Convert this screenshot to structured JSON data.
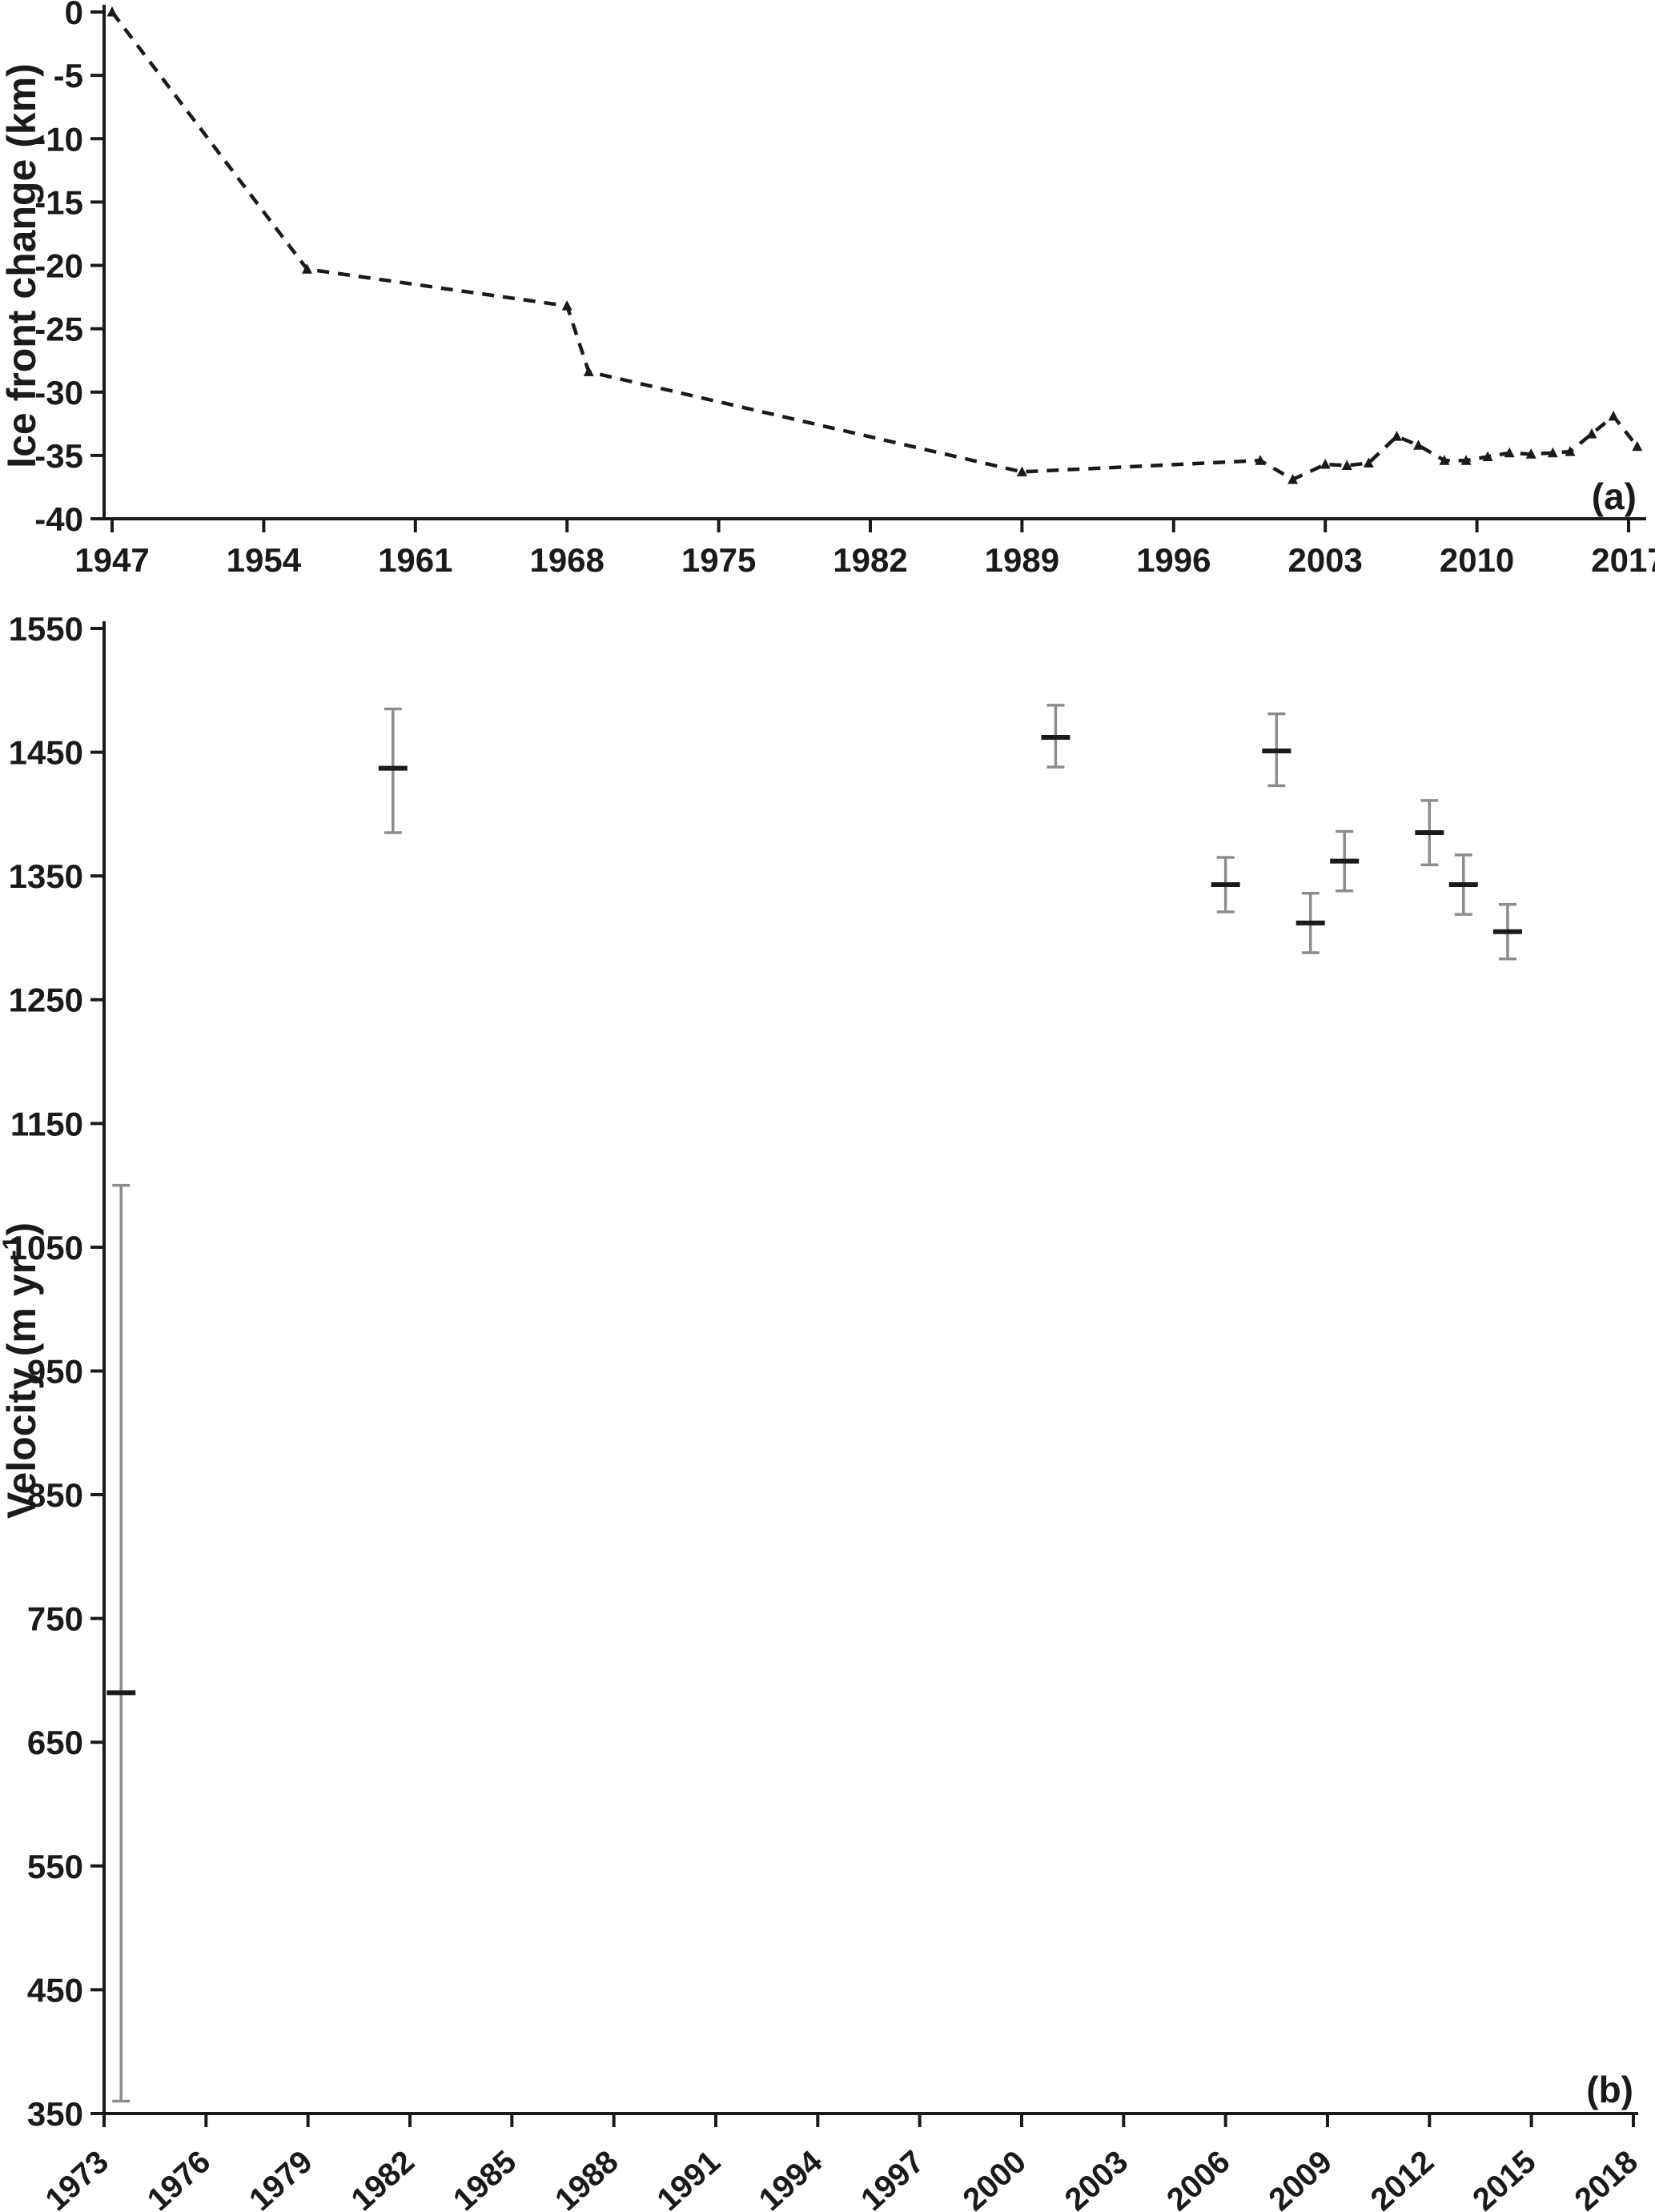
{
  "figure": {
    "background": "#ffffff",
    "text_color": "#1a1a1a",
    "error_bar_color": "#8c8c8c",
    "panel_a_label": "(a)",
    "panel_b_label": "(b)"
  },
  "chart_data": [
    {
      "type": "line",
      "panel_label": "(a)",
      "title": "",
      "xlabel": "",
      "ylabel": "Ice front change (km)",
      "xlim": [
        1946,
        2019.5
      ],
      "ylim": [
        -40,
        0
      ],
      "grid": false,
      "legend": "none",
      "line_style": "dashed",
      "marker": "triangle",
      "xticks": [
        1947,
        1954,
        1961,
        1968,
        1975,
        1982,
        1989,
        1996,
        2003,
        2010,
        2017
      ],
      "yticks": [
        0,
        -5,
        -10,
        -15,
        -20,
        -25,
        -30,
        -35,
        -40
      ],
      "series": [
        {
          "name": "Ice front change",
          "points": [
            {
              "x": 1947.0,
              "y": 0.0
            },
            {
              "x": 1956.0,
              "y": -20.3
            },
            {
              "x": 1968.0,
              "y": -23.2
            },
            {
              "x": 1969.0,
              "y": -28.4
            },
            {
              "x": 1989.0,
              "y": -36.3
            },
            {
              "x": 2000.0,
              "y": -35.4
            },
            {
              "x": 2001.5,
              "y": -36.9
            },
            {
              "x": 2003.0,
              "y": -35.7
            },
            {
              "x": 2004.0,
              "y": -35.8
            },
            {
              "x": 2005.0,
              "y": -35.6
            },
            {
              "x": 2006.3,
              "y": -33.5
            },
            {
              "x": 2007.3,
              "y": -34.2
            },
            {
              "x": 2008.5,
              "y": -35.4
            },
            {
              "x": 2009.5,
              "y": -35.4
            },
            {
              "x": 2010.5,
              "y": -35.1
            },
            {
              "x": 2011.5,
              "y": -34.8
            },
            {
              "x": 2012.5,
              "y": -34.9
            },
            {
              "x": 2013.5,
              "y": -34.8
            },
            {
              "x": 2014.3,
              "y": -34.7
            },
            {
              "x": 2015.3,
              "y": -33.3
            },
            {
              "x": 2016.3,
              "y": -31.9
            },
            {
              "x": 2017.4,
              "y": -34.3
            }
          ]
        }
      ]
    },
    {
      "type": "scatter",
      "panel_label": "(b)",
      "title": "",
      "xlabel": "",
      "ylabel": "Velocity (m yr⁻¹)",
      "ylabel_parts": {
        "base": "Velocity (m yr",
        "sup": "-1",
        "close": ")"
      },
      "xlim": [
        1973,
        2018
      ],
      "ylim": [
        350,
        1550
      ],
      "grid": false,
      "legend": "none",
      "marker": "horizontal-dash",
      "error_bars": true,
      "xticks": [
        1973,
        1976,
        1979,
        1982,
        1985,
        1988,
        1991,
        1994,
        1997,
        2000,
        2003,
        2006,
        2009,
        2012,
        2015,
        2018
      ],
      "yticks": [
        1550,
        1450,
        1350,
        1250,
        1150,
        1050,
        950,
        850,
        750,
        650,
        550,
        450,
        350
      ],
      "points": [
        {
          "x": 1973.5,
          "y": 690,
          "err_up": 410,
          "err_down": 330
        },
        {
          "x": 1981.5,
          "y": 1437,
          "err_up": 48,
          "err_down": 52
        },
        {
          "x": 2001.0,
          "y": 1462,
          "err_up": 26,
          "err_down": 24
        },
        {
          "x": 2006.0,
          "y": 1343,
          "err_up": 22,
          "err_down": 22
        },
        {
          "x": 2007.5,
          "y": 1451,
          "err_up": 30,
          "err_down": 28
        },
        {
          "x": 2008.5,
          "y": 1312,
          "err_up": 24,
          "err_down": 24
        },
        {
          "x": 2009.5,
          "y": 1362,
          "err_up": 24,
          "err_down": 24
        },
        {
          "x": 2012.0,
          "y": 1385,
          "err_up": 26,
          "err_down": 26
        },
        {
          "x": 2013.0,
          "y": 1343,
          "err_up": 24,
          "err_down": 24
        },
        {
          "x": 2014.3,
          "y": 1305,
          "err_up": 22,
          "err_down": 22
        }
      ]
    }
  ]
}
